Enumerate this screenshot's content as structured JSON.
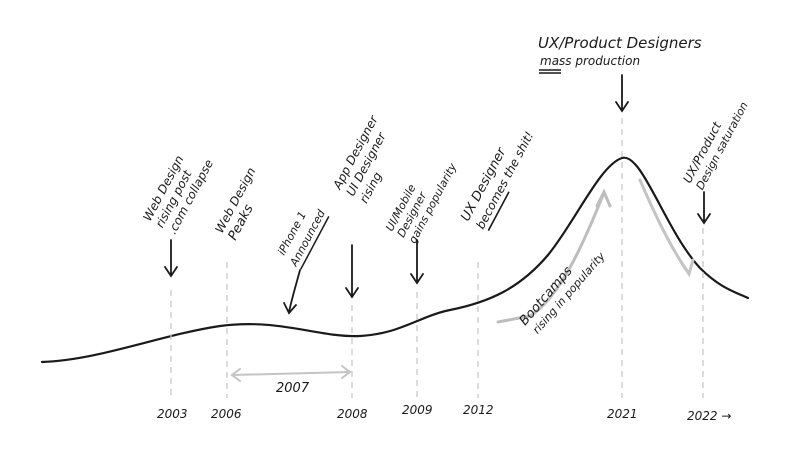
{
  "timeline": {
    "years": [
      {
        "id": "y2003",
        "label": "2003"
      },
      {
        "id": "y2006",
        "label": "2006"
      },
      {
        "id": "y2008",
        "label": "2008"
      },
      {
        "id": "y2009",
        "label": "2009"
      },
      {
        "id": "y2012",
        "label": "2012"
      },
      {
        "id": "y2021",
        "label": "2021"
      },
      {
        "id": "y2022",
        "label": "2022 →"
      }
    ],
    "span_label": "2007",
    "bootcamps_line1": "Bootcamps",
    "bootcamps_line2": "rising in popularity"
  },
  "annotations": {
    "web_design_rising": [
      "Web Design",
      "rising post",
      ".com collapse"
    ],
    "web_design_peaks": [
      "Web Design",
      "Peaks"
    ],
    "iphone": [
      "iPhone 1",
      "Announced"
    ],
    "app_ui_designer": [
      "App Designer",
      "UI Designer",
      "rising"
    ],
    "ui_mobile": [
      "UI/Mobile",
      "Designer",
      "gains popularity"
    ],
    "ux_designer": [
      "UX Designer",
      "becomes the shit!"
    ],
    "ux_product_mass": [
      "UX/Product Designers",
      "mass production"
    ],
    "ux_product_saturation": [
      "UX/Product",
      "Design saturation"
    ]
  }
}
